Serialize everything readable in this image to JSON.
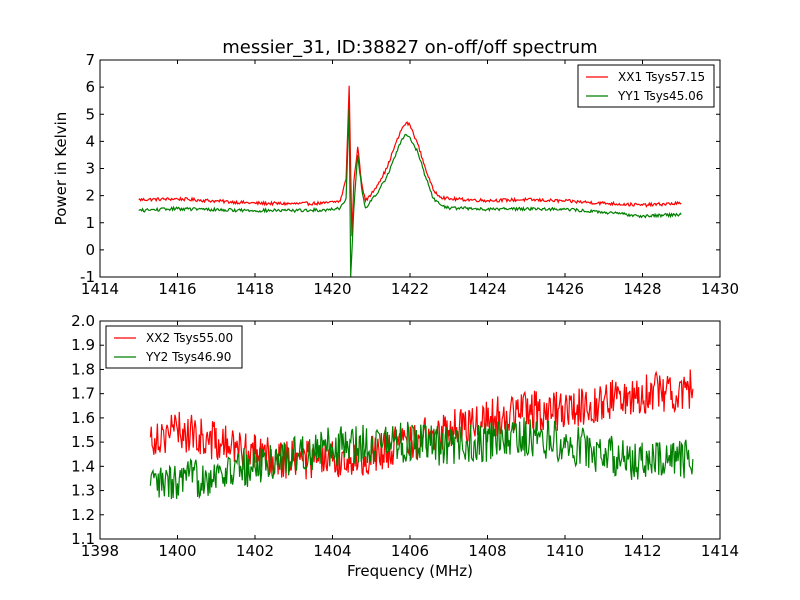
{
  "title": "messier_31, ID:38827 on-off/off spectrum",
  "chart_data": [
    {
      "type": "line",
      "panel": "top",
      "ylabel": "Power in Kelvin",
      "xlabel": "",
      "xlim": [
        1414,
        1430
      ],
      "ylim": [
        -1,
        7
      ],
      "xticks": [
        1414,
        1416,
        1418,
        1420,
        1422,
        1424,
        1426,
        1428,
        1430
      ],
      "yticks": [
        -1,
        0,
        1,
        2,
        3,
        4,
        5,
        6,
        7
      ],
      "legend_position": "top-right",
      "grid": false,
      "series": [
        {
          "name": "XX1 Tsys57.15",
          "color": "#ff0000",
          "points": [
            [
              1415.0,
              1.85
            ],
            [
              1416.0,
              1.88
            ],
            [
              1417.0,
              1.8
            ],
            [
              1418.0,
              1.72
            ],
            [
              1419.0,
              1.7
            ],
            [
              1419.8,
              1.72
            ],
            [
              1420.2,
              1.8
            ],
            [
              1420.35,
              2.6
            ],
            [
              1420.43,
              6.05
            ],
            [
              1420.5,
              0.5
            ],
            [
              1420.55,
              2.5
            ],
            [
              1420.65,
              3.8
            ],
            [
              1420.75,
              2.5
            ],
            [
              1420.85,
              1.8
            ],
            [
              1421.0,
              2.05
            ],
            [
              1421.2,
              2.5
            ],
            [
              1421.4,
              3.0
            ],
            [
              1421.6,
              3.8
            ],
            [
              1421.8,
              4.5
            ],
            [
              1421.9,
              4.68
            ],
            [
              1422.0,
              4.6
            ],
            [
              1422.2,
              3.9
            ],
            [
              1422.4,
              3.0
            ],
            [
              1422.6,
              2.2
            ],
            [
              1422.8,
              1.95
            ],
            [
              1423.0,
              1.88
            ],
            [
              1424.0,
              1.82
            ],
            [
              1425.0,
              1.85
            ],
            [
              1426.0,
              1.8
            ],
            [
              1427.0,
              1.72
            ],
            [
              1428.0,
              1.65
            ],
            [
              1429.0,
              1.72
            ]
          ]
        },
        {
          "name": "YY1 Tsys45.06",
          "color": "#008000",
          "points": [
            [
              1415.0,
              1.45
            ],
            [
              1416.0,
              1.52
            ],
            [
              1417.0,
              1.48
            ],
            [
              1418.0,
              1.45
            ],
            [
              1419.0,
              1.45
            ],
            [
              1419.8,
              1.47
            ],
            [
              1420.2,
              1.55
            ],
            [
              1420.35,
              1.9
            ],
            [
              1420.43,
              5.2
            ],
            [
              1420.47,
              -1.0
            ],
            [
              1420.55,
              1.5
            ],
            [
              1420.65,
              3.5
            ],
            [
              1420.75,
              2.3
            ],
            [
              1420.85,
              1.55
            ],
            [
              1421.0,
              1.8
            ],
            [
              1421.2,
              2.2
            ],
            [
              1421.4,
              2.7
            ],
            [
              1421.6,
              3.4
            ],
            [
              1421.8,
              4.1
            ],
            [
              1421.9,
              4.25
            ],
            [
              1422.0,
              4.15
            ],
            [
              1422.2,
              3.6
            ],
            [
              1422.4,
              2.7
            ],
            [
              1422.6,
              1.9
            ],
            [
              1422.8,
              1.65
            ],
            [
              1423.0,
              1.55
            ],
            [
              1424.0,
              1.5
            ],
            [
              1425.0,
              1.52
            ],
            [
              1426.0,
              1.5
            ],
            [
              1427.0,
              1.38
            ],
            [
              1428.0,
              1.25
            ],
            [
              1429.0,
              1.3
            ]
          ]
        }
      ]
    },
    {
      "type": "line",
      "panel": "bottom",
      "ylabel": "",
      "xlabel": "Frequency (MHz)",
      "xlim": [
        1398,
        1414
      ],
      "ylim": [
        1.1,
        2.0
      ],
      "xticks": [
        1398,
        1400,
        1402,
        1404,
        1406,
        1408,
        1410,
        1412,
        1414
      ],
      "yticks": [
        1.1,
        1.2,
        1.3,
        1.4,
        1.5,
        1.6,
        1.7,
        1.8,
        1.9,
        2.0
      ],
      "legend_position": "top-left",
      "grid": false,
      "series": [
        {
          "name": "XX2 Tsys55.00",
          "color": "#ff0000",
          "points": [
            [
              1399.3,
              1.52
            ],
            [
              1400.0,
              1.55
            ],
            [
              1401.0,
              1.5
            ],
            [
              1402.0,
              1.45
            ],
            [
              1403.0,
              1.43
            ],
            [
              1404.0,
              1.42
            ],
            [
              1405.0,
              1.45
            ],
            [
              1406.0,
              1.5
            ],
            [
              1407.0,
              1.55
            ],
            [
              1408.0,
              1.6
            ],
            [
              1409.0,
              1.63
            ],
            [
              1410.0,
              1.63
            ],
            [
              1411.0,
              1.67
            ],
            [
              1412.0,
              1.7
            ],
            [
              1413.3,
              1.72
            ]
          ]
        },
        {
          "name": "YY2 Tsys46.90",
          "color": "#008000",
          "points": [
            [
              1399.3,
              1.32
            ],
            [
              1400.0,
              1.33
            ],
            [
              1401.0,
              1.37
            ],
            [
              1402.0,
              1.4
            ],
            [
              1403.0,
              1.45
            ],
            [
              1404.0,
              1.48
            ],
            [
              1405.0,
              1.5
            ],
            [
              1406.0,
              1.5
            ],
            [
              1407.0,
              1.48
            ],
            [
              1408.0,
              1.5
            ],
            [
              1409.0,
              1.52
            ],
            [
              1410.0,
              1.5
            ],
            [
              1411.0,
              1.45
            ],
            [
              1412.0,
              1.42
            ],
            [
              1413.3,
              1.43
            ]
          ]
        }
      ]
    }
  ]
}
